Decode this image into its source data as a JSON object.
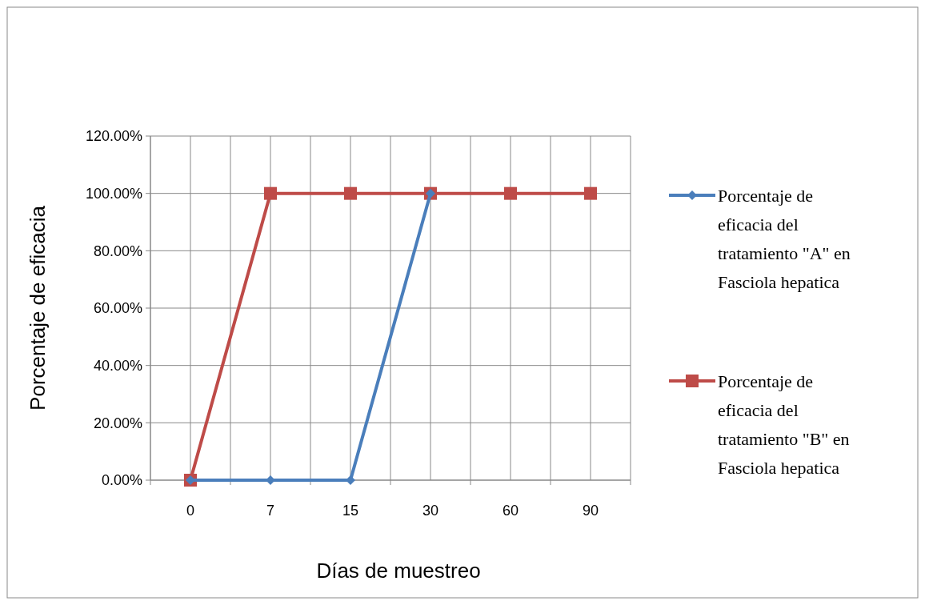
{
  "chart_data": {
    "type": "line",
    "xlabel": "Días de muestreo",
    "ylabel": "Porcentaje de eficacia",
    "categories": [
      "0",
      "7",
      "15",
      "30",
      "60",
      "90"
    ],
    "series": [
      {
        "name": "Porcentaje de eficacia del tratamiento \"A\"  en Fasciola hepatica",
        "color": "#4a7ebb",
        "marker": "diamond",
        "values": [
          0,
          0,
          0,
          100,
          null,
          null
        ]
      },
      {
        "name": "Porcentaje de eficacia del tratamiento \"B\"  en Fasciola hepatica",
        "color": "#be4b48",
        "marker": "square",
        "values": [
          0,
          100,
          100,
          100,
          100,
          100
        ]
      }
    ],
    "ylim": [
      0,
      120
    ],
    "yticks": [
      {
        "value": 0,
        "label": "0.00%"
      },
      {
        "value": 20,
        "label": "20.00%"
      },
      {
        "value": 40,
        "label": "40.00%"
      },
      {
        "value": 60,
        "label": "60.00%"
      },
      {
        "value": 80,
        "label": "80.00%"
      },
      {
        "value": 100,
        "label": "100.00%"
      },
      {
        "value": 120,
        "label": "120.00%"
      }
    ],
    "grid": true,
    "legend": "right"
  }
}
